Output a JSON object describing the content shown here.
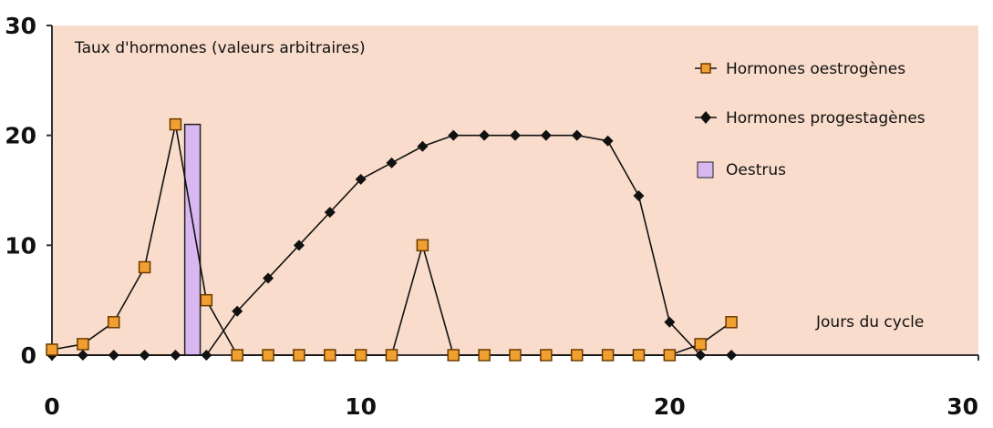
{
  "chart_data": {
    "type": "line",
    "title": "Taux d'hormones (valeurs arbitraires)",
    "xlabel": "Jours du cycle",
    "ylabel": "",
    "xlim": [
      0,
      30
    ],
    "ylim": [
      0,
      30
    ],
    "x_ticks": [
      0,
      10,
      20,
      30
    ],
    "y_ticks": [
      0,
      10,
      20,
      30
    ],
    "grid": false,
    "legend_position": "top-right",
    "background": "#f9dccb",
    "series": [
      {
        "name": "Hormones oestrogènes",
        "marker": "square",
        "color": "#f0a030",
        "x": [
          0,
          1,
          2,
          3,
          4,
          5,
          6,
          7,
          8,
          9,
          10,
          11,
          12,
          13,
          14,
          15,
          16,
          17,
          18,
          19,
          20,
          21,
          22
        ],
        "y": [
          0.5,
          1,
          3,
          8,
          21,
          5,
          0,
          0,
          0,
          0,
          0,
          0,
          10,
          0,
          0,
          0,
          0,
          0,
          0,
          0,
          0,
          1,
          3
        ]
      },
      {
        "name": "Hormones progestagènes",
        "marker": "diamond",
        "color": "#111111",
        "x": [
          0,
          1,
          2,
          3,
          4,
          5,
          6,
          7,
          8,
          9,
          10,
          11,
          12,
          13,
          14,
          15,
          16,
          17,
          18,
          19,
          20,
          21,
          22
        ],
        "y": [
          0,
          0,
          0,
          0,
          0,
          0,
          4,
          7,
          10,
          13,
          16,
          17.5,
          19,
          20,
          20,
          20,
          20,
          20,
          19.5,
          14.5,
          3,
          0,
          0
        ]
      }
    ],
    "bars": [
      {
        "name": "Oestrus",
        "x_start": 4.3,
        "x_end": 4.8,
        "value": 21,
        "color": "#d9b8f2"
      }
    ]
  }
}
